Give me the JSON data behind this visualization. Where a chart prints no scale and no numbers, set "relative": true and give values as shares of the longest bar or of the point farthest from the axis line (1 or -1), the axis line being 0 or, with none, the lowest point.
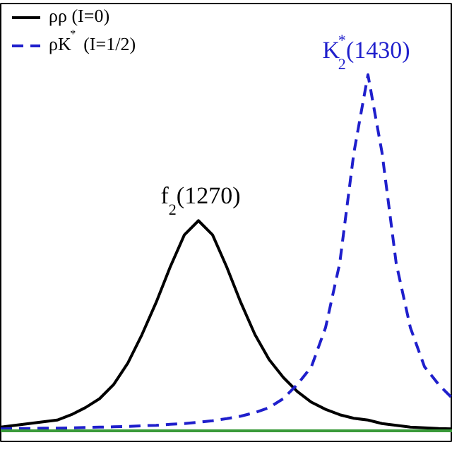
{
  "chart_data": {
    "type": "line",
    "relative": true,
    "tick_labels": false,
    "grid": false,
    "legend": "top left",
    "categories": [
      null,
      null,
      null,
      null,
      null,
      null,
      null,
      null,
      null,
      null,
      null,
      null,
      null,
      null,
      null,
      null,
      null,
      null,
      null,
      null,
      null,
      null,
      null,
      null,
      null,
      null,
      null,
      null,
      null,
      null,
      null,
      null,
      null
    ],
    "series": [
      {
        "name": "ρρ (I=0)",
        "color": "#000000",
        "line_style": "solid",
        "values": [
          0.01,
          0.015,
          0.02,
          0.025,
          0.03,
          0.045,
          0.065,
          0.09,
          0.13,
          0.19,
          0.27,
          0.36,
          0.46,
          0.55,
          0.59,
          0.55,
          0.46,
          0.36,
          0.27,
          0.2,
          0.15,
          0.11,
          0.08,
          0.06,
          0.045,
          0.035,
          0.03,
          0.02,
          0.015,
          0.01,
          0.008,
          0.006,
          0.005
        ]
      },
      {
        "name": "ρK$^{*}$ (I=1/2)",
        "color": "#1f1fcc",
        "line_style": "dashed",
        "values": [
          0.005,
          0.006,
          0.006,
          0.007,
          0.007,
          0.008,
          0.009,
          0.01,
          0.011,
          0.012,
          0.014,
          0.015,
          0.018,
          0.02,
          0.024,
          0.028,
          0.034,
          0.041,
          0.051,
          0.065,
          0.09,
          0.13,
          0.18,
          0.29,
          0.47,
          0.78,
          1,
          0.78,
          0.47,
          0.29,
          0.18,
          0.13,
          0.09
        ]
      },
      {
        "color": "#3a9a3a",
        "line_style": "solid",
        "values": [
          0,
          0,
          0,
          0,
          0,
          0,
          0,
          0,
          0,
          0,
          0,
          0,
          0,
          0,
          0,
          0,
          0,
          0,
          0,
          0,
          0,
          0,
          0,
          0,
          0,
          0,
          0,
          0,
          0,
          0,
          0,
          0,
          0
        ]
      }
    ],
    "annotations": [
      "f$_{2}$(1270)",
      "K$_{2}$$^{*}$(1430)"
    ]
  }
}
